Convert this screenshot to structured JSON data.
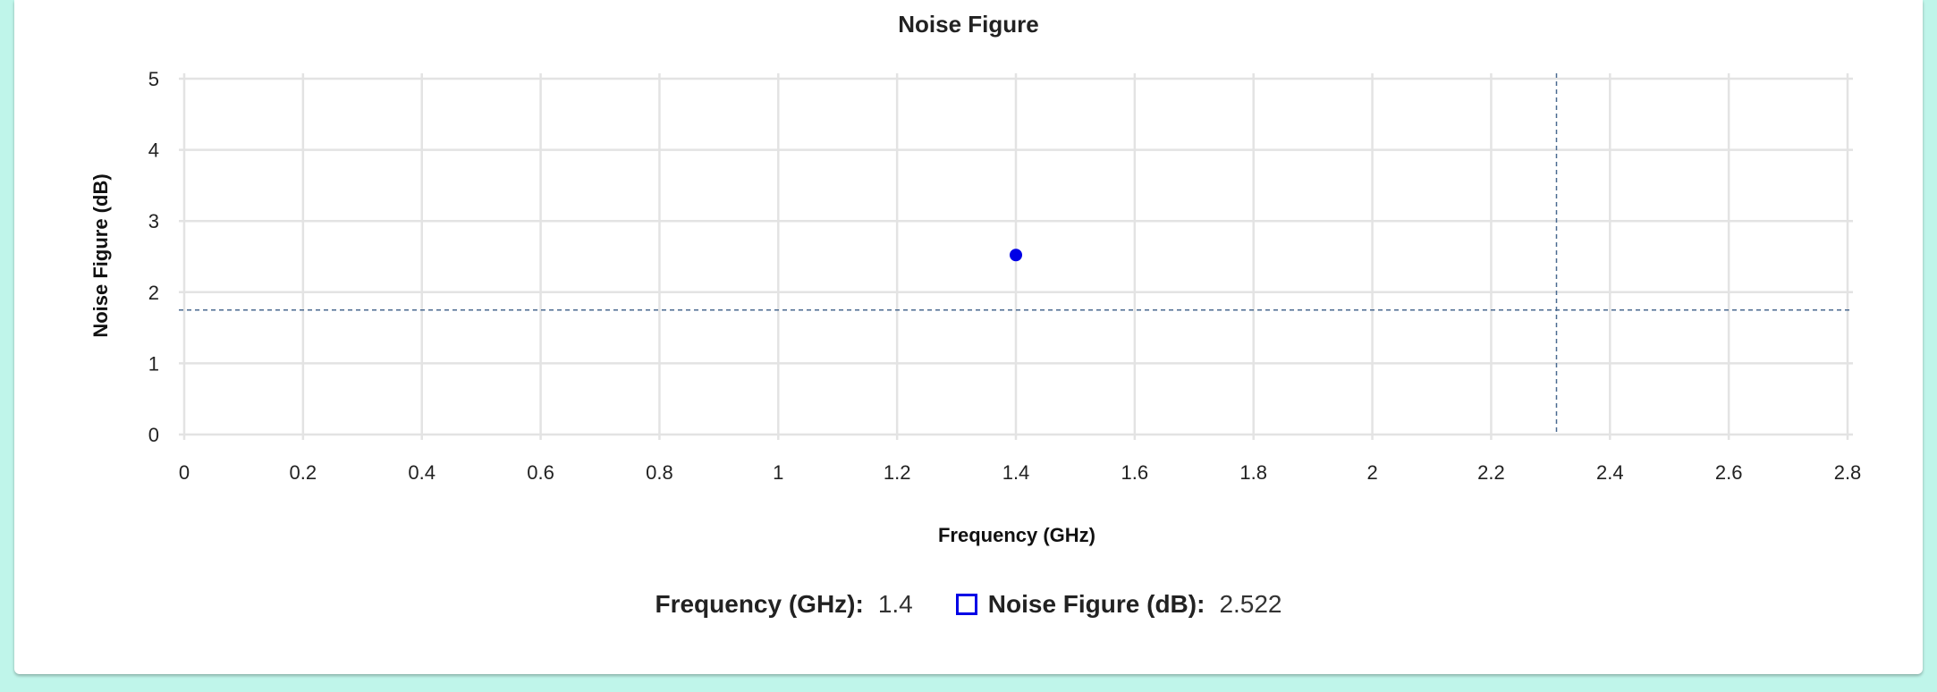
{
  "chart_data": {
    "type": "scatter",
    "title": "Noise Figure",
    "xlabel": "Frequency (GHz)",
    "ylabel": "Noise Figure (dB)",
    "xlim": [
      0,
      2.8
    ],
    "ylim": [
      0,
      5
    ],
    "xticks": [
      "0",
      "0.2",
      "0.4",
      "0.6",
      "0.8",
      "1",
      "1.2",
      "1.4",
      "1.6",
      "1.8",
      "2",
      "2.2",
      "2.4",
      "2.6",
      "2.8"
    ],
    "yticks": [
      "0",
      "1",
      "2",
      "3",
      "4",
      "5"
    ],
    "grid": true,
    "series": [
      {
        "name": "Noise Figure (dB)",
        "color": "#0000e6",
        "points": [
          {
            "x": 1.4,
            "y": 2.522
          }
        ]
      }
    ],
    "crosshair": {
      "x": 2.31,
      "y": 1.75,
      "color": "#4a6a90"
    }
  },
  "legend": {
    "x_label": "Frequency (GHz):",
    "x_value": "1.4",
    "series_label": "Noise Figure (dB):",
    "series_value": "2.522",
    "swatch_color": "#0000e6"
  }
}
